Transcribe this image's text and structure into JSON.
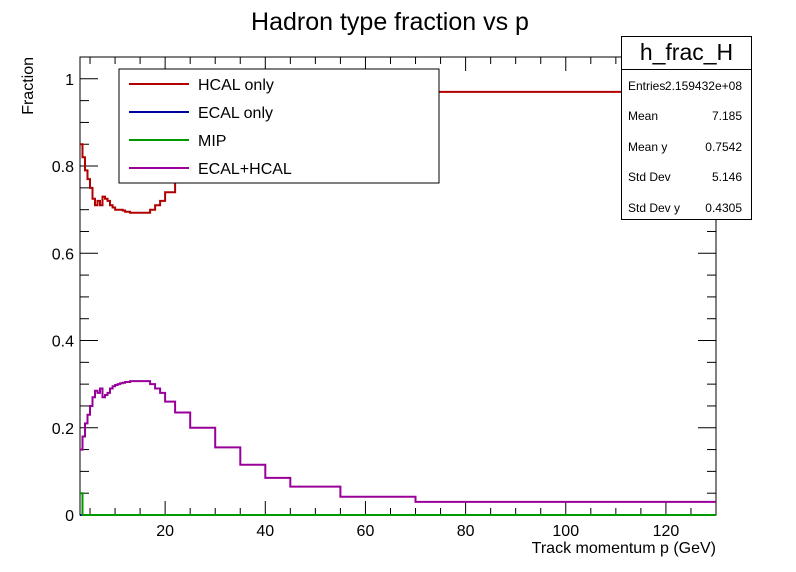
{
  "chart_data": {
    "type": "line",
    "title": "Hadron type fraction vs p",
    "xlabel": "Track momentum p (GeV)",
    "ylabel": "Fraction",
    "xlim": [
      3,
      130
    ],
    "ylim": [
      0,
      1.05
    ],
    "x_ticks": [
      20,
      40,
      60,
      80,
      100,
      120
    ],
    "y_ticks": [
      0,
      0.2,
      0.4,
      0.6,
      0.8,
      1
    ],
    "grid": false,
    "legend_position": "top-left",
    "bin_edges": [
      3,
      3.5,
      4,
      4.5,
      5,
      5.5,
      6,
      6.5,
      7,
      7.5,
      8,
      8.5,
      9,
      9.5,
      10,
      10.5,
      11,
      11.5,
      12,
      12.5,
      13,
      13.5,
      14,
      14.5,
      15,
      15.5,
      16,
      16.5,
      17,
      18,
      19,
      20,
      22,
      25,
      30,
      35,
      40,
      45,
      55,
      70,
      130
    ],
    "series": [
      {
        "name": "HCAL only",
        "color": "#b00000",
        "values": [
          0.85,
          0.82,
          0.79,
          0.77,
          0.75,
          0.725,
          0.71,
          0.72,
          0.71,
          0.73,
          0.725,
          0.72,
          0.71,
          0.705,
          0.7,
          0.7,
          0.7,
          0.698,
          0.695,
          0.695,
          0.693,
          0.693,
          0.693,
          0.693,
          0.693,
          0.693,
          0.693,
          0.693,
          0.7,
          0.71,
          0.72,
          0.74,
          0.77,
          0.82,
          0.87,
          0.9,
          0.93,
          0.95,
          0.96,
          0.97
        ]
      },
      {
        "name": "ECAL only",
        "color": "#0000a0",
        "values": [
          0,
          0,
          0,
          0,
          0,
          0,
          0,
          0,
          0,
          0,
          0,
          0,
          0,
          0,
          0,
          0,
          0,
          0,
          0,
          0,
          0,
          0,
          0,
          0,
          0,
          0,
          0,
          0,
          0,
          0,
          0,
          0,
          0,
          0,
          0,
          0,
          0,
          0,
          0,
          0
        ]
      },
      {
        "name": "MIP",
        "color": "#009900",
        "values": [
          0.05,
          0,
          0,
          0,
          0,
          0,
          0,
          0,
          0,
          0,
          0,
          0,
          0,
          0,
          0,
          0,
          0,
          0,
          0,
          0,
          0,
          0,
          0,
          0,
          0,
          0,
          0,
          0,
          0,
          0,
          0,
          0,
          0,
          0,
          0,
          0,
          0,
          0,
          0,
          0
        ]
      },
      {
        "name": "ECAL+HCAL",
        "color": "#990099",
        "values": [
          0.15,
          0.18,
          0.21,
          0.23,
          0.25,
          0.27,
          0.285,
          0.28,
          0.29,
          0.27,
          0.275,
          0.28,
          0.29,
          0.295,
          0.298,
          0.3,
          0.302,
          0.303,
          0.305,
          0.305,
          0.307,
          0.307,
          0.307,
          0.307,
          0.307,
          0.307,
          0.307,
          0.307,
          0.3,
          0.29,
          0.28,
          0.26,
          0.235,
          0.2,
          0.155,
          0.115,
          0.085,
          0.065,
          0.042,
          0.03
        ]
      }
    ]
  },
  "stats": {
    "title": "h_frac_H",
    "rows": [
      {
        "label": "Entries",
        "value": "2.159432e+08"
      },
      {
        "label": "Mean",
        "value": "7.185"
      },
      {
        "label": "Mean y",
        "value": "0.7542"
      },
      {
        "label": "Std Dev",
        "value": "5.146"
      },
      {
        "label": "Std Dev y",
        "value": "0.4305"
      }
    ]
  }
}
